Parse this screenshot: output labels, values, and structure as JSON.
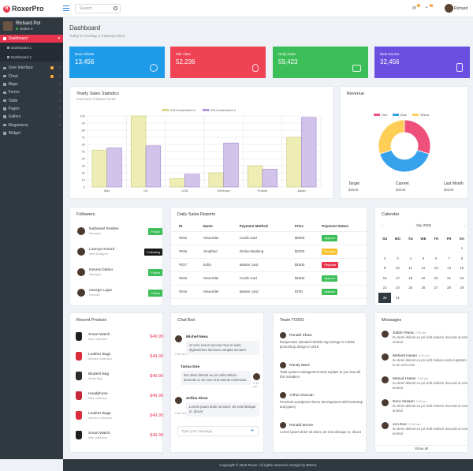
{
  "app": {
    "brand": "RoxerPro",
    "logo_letter": "R"
  },
  "topbar": {
    "search_placeholder": "Search",
    "mail_badge": "3",
    "notif_badge": "4",
    "user": "Richard"
  },
  "sidebar": {
    "profile_name": "Richard Pol",
    "status": "Online",
    "items": [
      {
        "label": "Dashboard",
        "active": true
      },
      {
        "label": "User Interface",
        "badge": "4"
      },
      {
        "label": "Chart",
        "badge": "5"
      },
      {
        "label": "Maps"
      },
      {
        "label": "Forms"
      },
      {
        "label": "Table"
      },
      {
        "label": "Pages"
      },
      {
        "label": "Gallery"
      },
      {
        "label": "Megamenu"
      },
      {
        "label": "Widget"
      }
    ],
    "sub_items": [
      "Dashboard 1",
      "Dashboard 2"
    ]
  },
  "page": {
    "title": "Dashboard",
    "subtitle": "Today is Tuesday, 6 February 2018"
  },
  "stats": [
    {
      "label": "New Clients",
      "value": "13,456",
      "color": "#1e9be9",
      "icon": "user-icon"
    },
    {
      "label": "Site View",
      "value": "52,236",
      "color": "#ef4355",
      "icon": "bulb-icon"
    },
    {
      "label": "Daily Sales",
      "value": "59,423",
      "color": "#3cbe58",
      "icon": "wallet-icon"
    },
    {
      "label": "New Invoice",
      "value": "32,456",
      "color": "#6a4fe0",
      "icon": "invoice-icon"
    }
  ],
  "yearly": {
    "title": "Yearly Sales Statistics",
    "subtitle": "Overview of latest month"
  },
  "chart_data": [
    {
      "type": "bar",
      "title": "Yearly Sales Statistics",
      "categories": [
        "Italy",
        "UK",
        "USA",
        "Germany",
        "France",
        "Japan"
      ],
      "series": [
        {
          "name": "2013 customers #",
          "color": "#eeeeb4",
          "values": [
            52,
            100,
            12,
            20,
            30,
            70
          ]
        },
        {
          "name": "2014 customers #",
          "color": "#d2c3eb",
          "values": [
            55,
            58,
            18,
            62,
            25,
            98
          ]
        }
      ],
      "ylim": [
        0,
        100
      ],
      "yticks": [
        0,
        10,
        20,
        30,
        40,
        50,
        60,
        70,
        80,
        90,
        100
      ]
    },
    {
      "type": "pie",
      "title": "Revenue",
      "labels": [
        "Red",
        "Blue",
        "Yellow"
      ],
      "values": [
        30,
        40,
        30
      ],
      "colors": [
        "#ef4f7b",
        "#36a2eb",
        "#ffce56"
      ]
    }
  ],
  "revenue": {
    "title": "Revenue",
    "legend": [
      "Red",
      "Blue",
      "Yellow"
    ],
    "footer": [
      {
        "label": "Target",
        "value": "$2535"
      },
      {
        "label": "Current",
        "value": "$3545"
      },
      {
        "label": "Last Month",
        "value": "$2535"
      }
    ]
  },
  "followers": {
    "title": "Followers",
    "rows": [
      {
        "name": "Nathaniel Rustles",
        "role": "Manager",
        "button": "Follow",
        "following": false
      },
      {
        "name": "Lutunya Kinard",
        "role": "Web Designer",
        "button": "Following",
        "following": true
      },
      {
        "name": "Dennis Daltun",
        "role": "Manager",
        "button": "Follow",
        "following": false
      },
      {
        "name": "George Lujan",
        "role": "Founder",
        "button": "Follow",
        "following": false
      }
    ]
  },
  "sales": {
    "title": "Daily Sales Reports",
    "columns": [
      "ID",
      "Name",
      "Payment Method",
      "Price",
      "Payment Status"
    ],
    "rows": [
      {
        "id": "#015",
        "name": "Alexender",
        "method": "Credit card",
        "price": "$2500",
        "status": "Approve",
        "color": "#3cbe58"
      },
      {
        "id": "#016",
        "name": "Jonathan",
        "method": "Online Banking",
        "price": "$2200",
        "status": "Pending",
        "color": "#f7c22e"
      },
      {
        "id": "#017",
        "name": "Sofia",
        "method": "Master card",
        "price": "$1600",
        "status": "Rejected",
        "color": "#e8354d"
      },
      {
        "id": "#018",
        "name": "Alexender",
        "method": "Credit card",
        "price": "$1500",
        "status": "Approve",
        "color": "#3cbe58"
      },
      {
        "id": "#019",
        "name": "Alexender",
        "method": "Master card",
        "price": "$700",
        "status": "Approve",
        "color": "#3cbe58"
      }
    ]
  },
  "calendar": {
    "title": "Calendar",
    "month": "July 2018",
    "weekdays": [
      "SU",
      "MO",
      "TU",
      "WE",
      "TH",
      "FR",
      "SA"
    ],
    "days": [
      "",
      "",
      "",
      "",
      "",
      "",
      "1",
      "2",
      "3",
      "4",
      "5",
      "6",
      "7",
      "8",
      "9",
      "10",
      "11",
      "12",
      "13",
      "14",
      "15",
      "16",
      "17",
      "18",
      "19",
      "20",
      "21",
      "22",
      "23",
      "24",
      "25",
      "26",
      "27",
      "28",
      "29",
      "30",
      "31"
    ],
    "today": "30"
  },
  "products": {
    "title": "Recent Product",
    "rows": [
      {
        "name": "Smart Watch",
        "sub": "Man collection",
        "price": "$49.99",
        "color": "#1f1f1f"
      },
      {
        "name": "Leather Bags",
        "sub": "Women collection",
        "price": "$49.99",
        "color": "#d82d3c"
      },
      {
        "name": "Bluderit Bag",
        "sub": "Study Bag",
        "price": "$49.99",
        "color": "#2b2b2b"
      },
      {
        "name": "Headphone",
        "sub": "Man collection",
        "price": "$49.99",
        "color": "#c62838"
      },
      {
        "name": "Leather Bags",
        "sub": "Women collection",
        "price": "$49.99",
        "color": "#d82d3c"
      },
      {
        "name": "Smart Watch",
        "sub": "Man collection",
        "price": "$49.99",
        "color": "#1f1f1f"
      }
    ]
  },
  "chat": {
    "title": "Chat Box",
    "input_placeholder": "Type your message",
    "messages": [
      {
        "name": "Michel Nesa",
        "text": "At vero eos et accusa mus et iusto dignissimos ducimus voluptia senitum",
        "time": "2:30 am",
        "side": "left"
      },
      {
        "name": "Tarisa Doe",
        "text": "Itsu demi delenti eu pri vidit meliore docendi ut, an eum erat animal commodo.",
        "time": "2:32 am",
        "side": "right"
      },
      {
        "name": "Zofina Khan",
        "text": "Lorem ipsum dolor sit amet, vis erat denique in, dicunt",
        "time": "2:33 am",
        "side": "left"
      }
    ]
  },
  "todo": {
    "title": "Team TODO",
    "items": [
      {
        "name": "Ronald Shaw",
        "text": "Responsive standard Mobile App Design in Adobe photoshop design in 2018"
      },
      {
        "name": "Randy Baez",
        "text": "Total system management trust explain to you how all this mistaken"
      },
      {
        "name": "Arthur Duncan",
        "text": "Premium wordpress theme development with bootstrap and jquery"
      },
      {
        "name": "Ronald Moore",
        "text": "Lorem ipsum dolor sit amet, vis erat denique in, dicunt"
      }
    ]
  },
  "messages": {
    "title": "Messages",
    "show_all": "Show all",
    "items": [
      {
        "name": "Sabrin Rana",
        "time": "2:30 am",
        "text": "Itu demi delenti eu pri vidit meliore docendi ut erat animal"
      },
      {
        "name": "Mehedi Hasan",
        "time": "3:00 pm",
        "text": "Itu demi delenti eu pri vidit meliore purto luptatum te an eum erat"
      },
      {
        "name": "Masud Hasan",
        "time": "9:30 am",
        "text": "Itu demi delenti eu pri vidit meliore docendi ut erat animal"
      },
      {
        "name": "Noor Ahasan",
        "time": "2:30 am",
        "text": "Itu demi delenti eu pri vidit meliore docendi ut erat animal"
      },
      {
        "name": "Jon Doe",
        "time": "12:30 am",
        "text": "Itu demi delenti eu pri vidit meliore docendi ut erat animal"
      }
    ]
  },
  "footer": {
    "text": "Copyright © 2018 Roxer. All rights reserved. Design by BDevs"
  }
}
